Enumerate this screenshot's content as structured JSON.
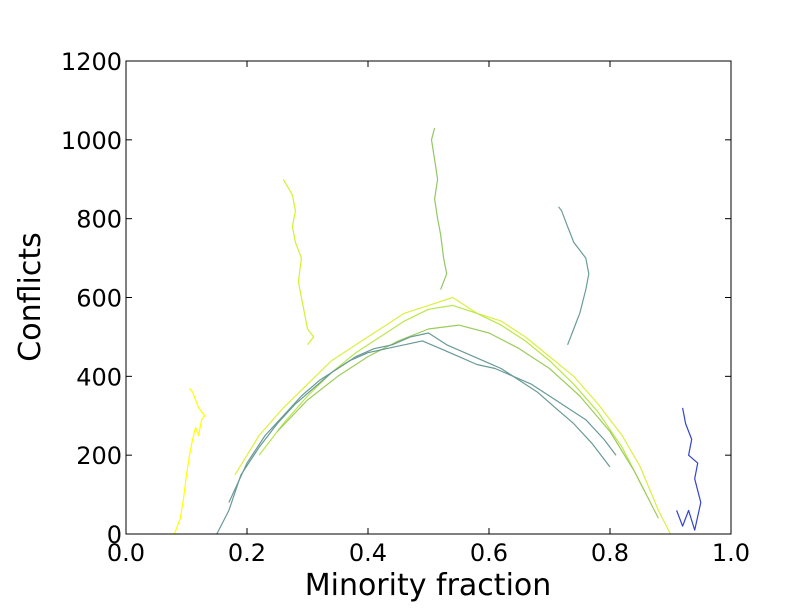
{
  "chart_data": {
    "type": "line",
    "title": "",
    "xlabel": "Minority fraction",
    "ylabel": "Conflicts",
    "xlim": [
      0.0,
      1.0
    ],
    "ylim": [
      0,
      1200
    ],
    "xticks": [
      0.0,
      0.2,
      0.4,
      0.6,
      0.8,
      1.0
    ],
    "xtick_labels": [
      "0.0",
      "0.2",
      "0.4",
      "0.6",
      "0.8",
      "1.0"
    ],
    "yticks": [
      0,
      200,
      400,
      600,
      800,
      1000,
      1200
    ],
    "ytick_labels": [
      "0",
      "200",
      "400",
      "600",
      "800",
      "1000",
      "1200"
    ],
    "grid": false,
    "legend": "none",
    "series": [
      {
        "color": "#ffff00",
        "x": [
          0.08,
          0.09,
          0.095,
          0.1,
          0.105,
          0.11,
          0.115,
          0.12,
          0.125,
          0.13,
          0.12,
          0.115,
          0.11,
          0.105
        ],
        "y": [
          0,
          40,
          90,
          150,
          200,
          240,
          270,
          250,
          290,
          300,
          320,
          340,
          360,
          370
        ]
      },
      {
        "color": "#dcef40",
        "x": [
          0.18,
          0.22,
          0.26,
          0.3,
          0.34,
          0.38,
          0.42,
          0.46,
          0.5,
          0.54,
          0.58,
          0.62,
          0.66,
          0.7,
          0.74,
          0.78,
          0.82,
          0.85,
          0.88,
          0.9
        ],
        "y": [
          150,
          250,
          320,
          380,
          440,
          480,
          520,
          560,
          580,
          600,
          560,
          540,
          500,
          450,
          400,
          330,
          250,
          170,
          60,
          0
        ]
      },
      {
        "color": "#d6f02e",
        "x": [
          0.3,
          0.31,
          0.3,
          0.295,
          0.29,
          0.285,
          0.29,
          0.28,
          0.275,
          0.28,
          0.275,
          0.26
        ],
        "y": [
          480,
          500,
          520,
          560,
          600,
          640,
          700,
          740,
          780,
          820,
          860,
          900
        ]
      },
      {
        "color": "#b8e848",
        "x": [
          0.22,
          0.26,
          0.3,
          0.34,
          0.38,
          0.42,
          0.46,
          0.5,
          0.54,
          0.58,
          0.62,
          0.66,
          0.7,
          0.74,
          0.78,
          0.82,
          0.86
        ],
        "y": [
          200,
          280,
          350,
          410,
          460,
          500,
          540,
          570,
          580,
          560,
          530,
          490,
          440,
          380,
          310,
          220,
          100
        ]
      },
      {
        "color": "#9ccc5a",
        "x": [
          0.25,
          0.3,
          0.35,
          0.4,
          0.45,
          0.5,
          0.55,
          0.6,
          0.65,
          0.7,
          0.75,
          0.8,
          0.84,
          0.88
        ],
        "y": [
          260,
          340,
          400,
          450,
          490,
          520,
          530,
          510,
          470,
          420,
          350,
          260,
          160,
          40
        ]
      },
      {
        "color": "#92c863",
        "x": [
          0.52,
          0.53,
          0.525,
          0.52,
          0.515,
          0.51,
          0.515,
          0.51,
          0.505,
          0.51
        ],
        "y": [
          620,
          660,
          700,
          760,
          800,
          850,
          900,
          950,
          1000,
          1030
        ]
      },
      {
        "color": "#689a98",
        "x": [
          0.15,
          0.17,
          0.19,
          0.22,
          0.25,
          0.28,
          0.31,
          0.34,
          0.37,
          0.4,
          0.43,
          0.46,
          0.49,
          0.52,
          0.55,
          0.58,
          0.61,
          0.64,
          0.67,
          0.7,
          0.73,
          0.76,
          0.79,
          0.81
        ],
        "y": [
          0,
          60,
          150,
          220,
          280,
          330,
          370,
          410,
          440,
          460,
          470,
          480,
          490,
          470,
          450,
          430,
          420,
          400,
          380,
          350,
          320,
          290,
          240,
          200
        ]
      },
      {
        "color": "#6a9a95",
        "x": [
          0.17,
          0.2,
          0.23,
          0.26,
          0.29,
          0.32,
          0.35,
          0.38,
          0.41,
          0.44,
          0.47,
          0.5,
          0.53,
          0.56,
          0.59,
          0.62,
          0.65,
          0.68,
          0.71,
          0.74,
          0.77,
          0.8
        ],
        "y": [
          80,
          180,
          250,
          300,
          350,
          390,
          420,
          450,
          470,
          480,
          500,
          510,
          480,
          460,
          440,
          420,
          390,
          360,
          320,
          280,
          230,
          170
        ]
      },
      {
        "color": "#6a9c98",
        "x": [
          0.73,
          0.74,
          0.745,
          0.75,
          0.755,
          0.76,
          0.765,
          0.76,
          0.75,
          0.74,
          0.735,
          0.73,
          0.725,
          0.72,
          0.715
        ],
        "y": [
          480,
          520,
          540,
          560,
          590,
          620,
          660,
          700,
          720,
          740,
          760,
          780,
          800,
          820,
          830
        ]
      },
      {
        "color": "#3344cc",
        "x": [
          0.91,
          0.92,
          0.93,
          0.94,
          0.95,
          0.94,
          0.945,
          0.93,
          0.935,
          0.925,
          0.92
        ],
        "y": [
          60,
          20,
          60,
          10,
          80,
          140,
          180,
          200,
          240,
          280,
          320
        ]
      }
    ]
  }
}
